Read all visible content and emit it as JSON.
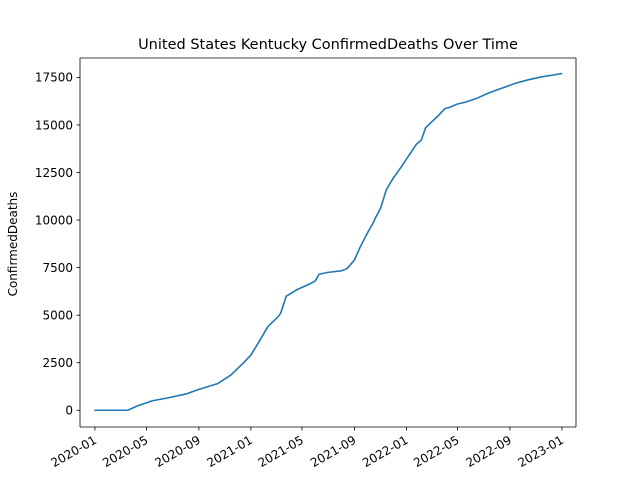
{
  "chart_data": {
    "type": "line",
    "title": "United States Kentucky ConfirmedDeaths Over Time",
    "xlabel": "",
    "ylabel": "ConfirmedDeaths",
    "grid": false,
    "xlim": [
      "2019-11-27",
      "2023-02-03"
    ],
    "ylim": [
      -880,
      18520
    ],
    "x_ticks": [
      "2020-01",
      "2020-05",
      "2020-09",
      "2021-01",
      "2021-05",
      "2021-09",
      "2022-01",
      "2022-05",
      "2022-09",
      "2023-01"
    ],
    "y_ticks": [
      0,
      2500,
      5000,
      7500,
      10000,
      12500,
      15000,
      17500
    ],
    "y_tick_labels": [
      "0",
      "2500",
      "5000",
      "7500",
      "10000",
      "12500",
      "15000",
      "17500"
    ],
    "series": [
      {
        "color": "#1f77b4",
        "x": [
          "2020-01-01",
          "2020-03-18",
          "2020-04-10",
          "2020-05-15",
          "2020-06-20",
          "2020-08-01",
          "2020-09-01",
          "2020-10-15",
          "2020-11-15",
          "2020-12-15",
          "2021-01-01",
          "2021-01-20",
          "2021-02-10",
          "2021-03-05",
          "2021-03-12",
          "2021-03-25",
          "2021-04-20",
          "2021-05-20",
          "2021-06-01",
          "2021-06-10",
          "2021-07-01",
          "2021-08-01",
          "2021-08-15",
          "2021-09-01",
          "2021-09-15",
          "2021-10-01",
          "2021-10-15",
          "2021-10-20",
          "2021-11-01",
          "2021-11-15",
          "2021-12-01",
          "2021-12-20",
          "2022-01-10",
          "2022-01-25",
          "2022-02-05",
          "2022-02-15",
          "2022-03-01",
          "2022-03-15",
          "2022-04-01",
          "2022-04-15",
          "2022-05-01",
          "2022-05-20",
          "2022-06-15",
          "2022-07-15",
          "2022-08-15",
          "2022-09-15",
          "2022-10-15",
          "2022-11-15",
          "2022-12-15",
          "2022-12-31"
        ],
        "y": [
          0,
          0,
          230,
          500,
          650,
          850,
          1100,
          1400,
          1850,
          2500,
          2900,
          3600,
          4400,
          4900,
          5100,
          6000,
          6350,
          6650,
          6800,
          7150,
          7250,
          7330,
          7450,
          7900,
          8600,
          9300,
          9850,
          10100,
          10600,
          11600,
          12200,
          12800,
          13500,
          14000,
          14200,
          14850,
          15150,
          15450,
          15850,
          15950,
          16100,
          16200,
          16400,
          16700,
          16950,
          17200,
          17380,
          17530,
          17640,
          17700
        ]
      }
    ]
  }
}
